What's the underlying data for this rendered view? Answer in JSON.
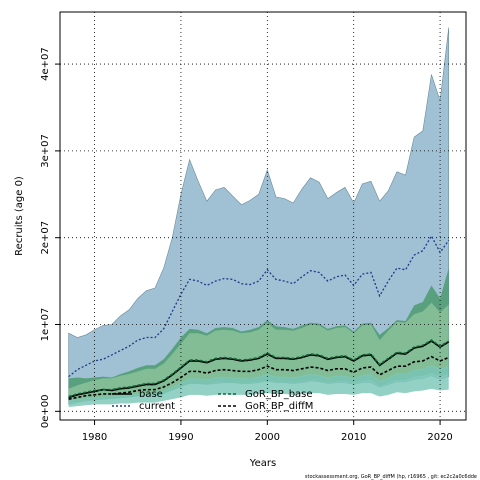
{
  "chart_data": {
    "type": "area",
    "xlabel": "Years",
    "ylabel": "Recruits (age 0)",
    "xlim": [
      1976,
      2023
    ],
    "ylim": [
      -1000000,
      46000000
    ],
    "x_ticks": [
      1980,
      1990,
      2000,
      2010,
      2020
    ],
    "y_ticks": [
      0,
      10000000,
      20000000,
      30000000,
      40000000
    ],
    "y_tick_labels": [
      "0e+00",
      "1e+07",
      "2e+07",
      "3e+07",
      "4e+07"
    ],
    "grid": true,
    "legend_position": "bottom-left",
    "footnote": "stockassessment.org, GoR_BP_diffM (hp, r16965 , git: ec2c2a0c6dde",
    "years": [
      1977,
      1978,
      1979,
      1980,
      1981,
      1982,
      1983,
      1984,
      1985,
      1986,
      1987,
      1988,
      1989,
      1990,
      1991,
      1992,
      1993,
      1994,
      1995,
      1996,
      1997,
      1998,
      1999,
      2000,
      2001,
      2002,
      2003,
      2004,
      2005,
      2006,
      2007,
      2008,
      2009,
      2010,
      2011,
      2012,
      2013,
      2014,
      2015,
      2016,
      2017,
      2018,
      2019,
      2020,
      2021
    ],
    "series": [
      {
        "name": "current",
        "color": "#a0c0d4",
        "line_color": "#1f3a8a",
        "line_style": "dotted",
        "values": [
          4.0,
          4.8,
          5.3,
          5.8,
          6.0,
          6.5,
          7.0,
          7.5,
          8.2,
          8.5,
          8.5,
          9.5,
          11.5,
          13.5,
          15.2,
          15.0,
          14.5,
          15.0,
          15.3,
          15.2,
          14.7,
          14.6,
          15.0,
          16.3,
          15.2,
          15.0,
          14.7,
          15.5,
          16.2,
          16.0,
          15.0,
          15.5,
          15.7,
          14.5,
          15.8,
          16.0,
          13.3,
          15.0,
          16.5,
          16.3,
          18.0,
          18.5,
          20.2,
          18.3,
          19.7
        ],
        "lower": [
          0.8,
          1.0,
          1.2,
          1.3,
          1.4,
          1.5,
          1.6,
          1.7,
          1.8,
          1.9,
          1.9,
          2.2,
          2.6,
          2.9,
          3.2,
          3.2,
          3.1,
          3.2,
          3.3,
          3.3,
          3.2,
          3.2,
          3.3,
          3.5,
          3.3,
          3.3,
          3.2,
          3.3,
          3.5,
          3.4,
          3.2,
          3.3,
          3.3,
          3.1,
          3.3,
          3.3,
          2.8,
          3.1,
          3.4,
          3.4,
          3.7,
          3.8,
          4.1,
          3.7,
          4.0
        ],
        "upper": [
          9.0,
          8.5,
          8.8,
          9.4,
          9.9,
          10.0,
          11.0,
          11.7,
          13.0,
          13.9,
          14.2,
          16.5,
          20.0,
          25.0,
          29.0,
          26.5,
          24.2,
          25.5,
          25.8,
          24.8,
          23.8,
          24.3,
          25.0,
          27.8,
          24.7,
          24.5,
          24.0,
          25.6,
          26.9,
          26.4,
          24.5,
          25.2,
          25.8,
          24.0,
          26.2,
          26.5,
          24.2,
          25.4,
          27.6,
          27.2,
          31.6,
          32.3,
          38.8,
          35.8,
          44.2
        ]
      },
      {
        "name": "base",
        "color": "#4c9a6e",
        "line_color": "#000000",
        "line_style": "solid",
        "values": [
          1.6,
          1.9,
          2.1,
          2.3,
          2.5,
          2.4,
          2.6,
          2.7,
          2.9,
          3.1,
          3.1,
          3.5,
          4.2,
          5.0,
          5.8,
          5.8,
          5.6,
          6.0,
          6.1,
          6.0,
          5.8,
          5.9,
          6.1,
          6.6,
          6.1,
          6.1,
          6.0,
          6.2,
          6.5,
          6.4,
          6.0,
          6.2,
          6.3,
          5.8,
          6.4,
          6.5,
          5.3,
          6.0,
          6.7,
          6.6,
          7.3,
          7.5,
          8.1,
          7.4,
          8.0
        ],
        "lower": [
          1.0,
          1.1,
          1.3,
          1.3,
          1.4,
          1.4,
          1.5,
          1.6,
          1.7,
          1.8,
          1.8,
          2.0,
          2.4,
          2.8,
          3.2,
          3.2,
          3.1,
          3.3,
          3.4,
          3.3,
          3.2,
          3.3,
          3.4,
          3.6,
          3.4,
          3.4,
          3.3,
          3.4,
          3.6,
          3.5,
          3.3,
          3.4,
          3.5,
          3.2,
          3.5,
          3.6,
          2.9,
          3.3,
          3.6,
          3.6,
          4.0,
          4.1,
          4.4,
          4.0,
          4.3
        ],
        "upper": [
          3.8,
          3.9,
          3.8,
          3.9,
          4.0,
          3.9,
          4.3,
          4.6,
          5.0,
          5.3,
          5.3,
          6.0,
          7.2,
          8.5,
          9.5,
          9.4,
          9.0,
          9.6,
          9.7,
          9.6,
          9.2,
          9.4,
          9.7,
          10.5,
          9.8,
          9.7,
          9.5,
          9.9,
          10.2,
          10.1,
          9.5,
          9.8,
          9.9,
          9.2,
          10.1,
          10.2,
          8.8,
          9.6,
          10.5,
          10.4,
          12.2,
          12.6,
          14.5,
          13.0,
          16.5
        ]
      },
      {
        "name": "GoR_BP_base",
        "color": "#8cc49c",
        "line_color": "#0d6b3a",
        "line_style": "dashed",
        "values": [
          1.7,
          2.0,
          2.2,
          2.4,
          2.5,
          2.5,
          2.7,
          2.8,
          3.0,
          3.2,
          3.2,
          3.6,
          4.3,
          5.1,
          5.9,
          5.9,
          5.7,
          6.1,
          6.2,
          6.1,
          5.9,
          6.0,
          6.2,
          6.7,
          6.2,
          6.2,
          6.1,
          6.3,
          6.6,
          6.5,
          6.1,
          6.3,
          6.4,
          5.9,
          6.5,
          6.6,
          5.4,
          6.1,
          6.8,
          6.7,
          7.4,
          7.6,
          8.2,
          7.5,
          8.1
        ],
        "lower": [
          1.1,
          1.3,
          1.4,
          1.5,
          1.6,
          1.6,
          1.7,
          1.8,
          1.9,
          2.0,
          2.0,
          2.3,
          2.7,
          3.2,
          3.7,
          3.7,
          3.6,
          3.8,
          3.9,
          3.8,
          3.7,
          3.8,
          3.9,
          4.2,
          3.9,
          3.9,
          3.8,
          4.0,
          4.2,
          4.1,
          3.8,
          4.0,
          4.0,
          3.7,
          4.1,
          4.2,
          3.4,
          3.8,
          4.3,
          4.2,
          4.7,
          4.8,
          5.2,
          4.7,
          5.1
        ],
        "upper": [
          2.6,
          3.0,
          3.3,
          3.6,
          3.8,
          3.8,
          4.1,
          4.3,
          4.6,
          4.9,
          4.9,
          5.5,
          6.6,
          7.8,
          9.0,
          9.0,
          8.7,
          9.3,
          9.4,
          9.3,
          9.0,
          9.1,
          9.4,
          10.2,
          9.4,
          9.4,
          9.3,
          9.6,
          10.0,
          9.9,
          9.3,
          9.6,
          9.7,
          9.0,
          9.9,
          10.0,
          8.2,
          9.3,
          10.3,
          10.2,
          11.2,
          11.5,
          12.5,
          11.4,
          12.3
        ]
      },
      {
        "name": "GoR_BP_diffM",
        "color": "#7fc9b8",
        "line_color": "#000000",
        "line_style": "dashed",
        "values": [
          1.4,
          1.6,
          1.8,
          1.9,
          2.0,
          2.0,
          2.1,
          2.2,
          2.4,
          2.5,
          2.5,
          2.8,
          3.3,
          3.9,
          4.6,
          4.6,
          4.4,
          4.7,
          4.8,
          4.7,
          4.6,
          4.6,
          4.8,
          5.2,
          4.8,
          4.8,
          4.7,
          4.9,
          5.1,
          5.0,
          4.7,
          4.9,
          4.9,
          4.5,
          5.0,
          5.1,
          4.2,
          4.7,
          5.2,
          5.2,
          5.7,
          5.8,
          6.3,
          5.8,
          6.2
        ],
        "lower": [
          0.5,
          0.6,
          0.7,
          0.8,
          0.8,
          0.8,
          0.9,
          0.9,
          1.0,
          1.0,
          1.0,
          1.2,
          1.4,
          1.6,
          1.9,
          1.9,
          1.8,
          1.9,
          2.0,
          1.9,
          1.9,
          1.9,
          2.0,
          2.1,
          2.0,
          2.0,
          1.9,
          2.0,
          2.1,
          2.1,
          1.9,
          2.0,
          2.0,
          1.9,
          2.1,
          2.1,
          1.7,
          1.9,
          2.2,
          2.1,
          2.3,
          2.4,
          2.6,
          2.4,
          2.5
        ],
        "upper": [
          1.2,
          1.4,
          1.5,
          1.6,
          1.7,
          1.7,
          1.8,
          1.9,
          2.0,
          2.1,
          2.1,
          2.4,
          2.8,
          3.3,
          3.8,
          3.8,
          3.7,
          3.9,
          4.0,
          3.9,
          3.8,
          3.8,
          4.0,
          4.3,
          4.0,
          4.0,
          3.9,
          4.1,
          4.3,
          4.2,
          3.9,
          4.1,
          4.1,
          3.8,
          4.2,
          4.3,
          3.5,
          3.9,
          4.4,
          4.3,
          4.8,
          4.9,
          5.3,
          4.9,
          5.2
        ]
      }
    ],
    "values_unit_multiplier": 1000000
  }
}
